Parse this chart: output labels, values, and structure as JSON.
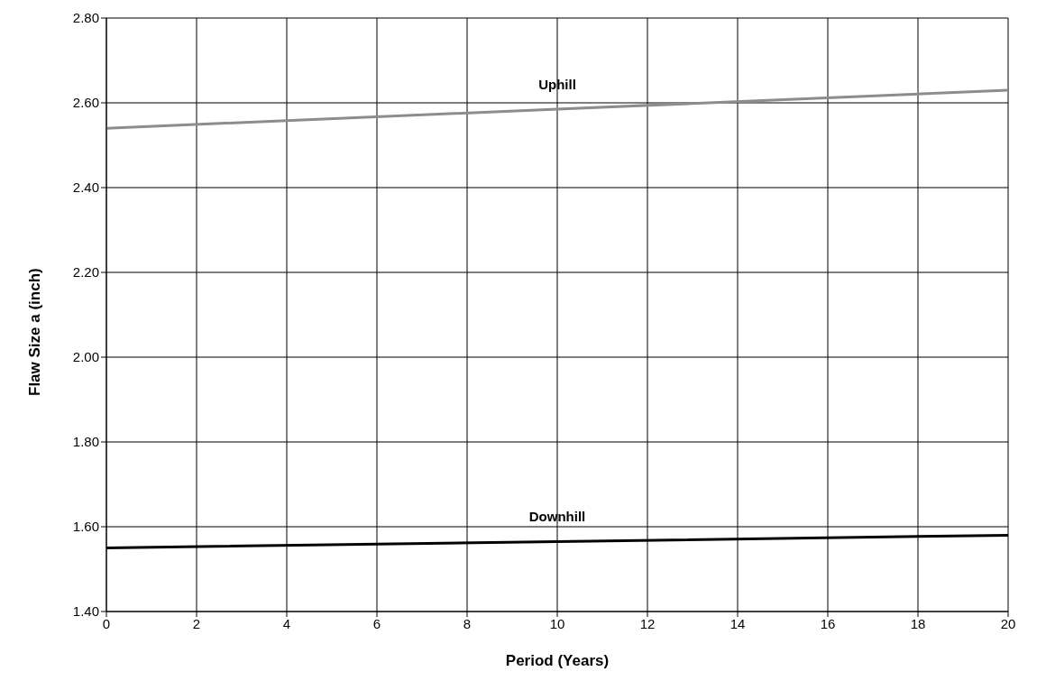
{
  "chart_data": {
    "type": "line",
    "xlabel": "Period (Years)",
    "ylabel": "Flaw  Size a (inch)",
    "xlim": [
      0,
      20
    ],
    "xticks": [
      0,
      2,
      4,
      6,
      8,
      10,
      12,
      14,
      16,
      18,
      20
    ],
    "ylim": [
      1.4,
      2.8
    ],
    "yticks": [
      {
        "value": 1.4,
        "label": "1.40"
      },
      {
        "value": 1.6,
        "label": "1.60"
      },
      {
        "value": 1.8,
        "label": "1.80"
      },
      {
        "value": 2.0,
        "label": "2.00"
      },
      {
        "value": 2.2,
        "label": "2.20"
      },
      {
        "value": 2.4,
        "label": "2.40"
      },
      {
        "value": 2.6,
        "label": "2.60"
      },
      {
        "value": 2.8,
        "label": "2.80"
      }
    ],
    "grid": true,
    "marker": "none",
    "line_style": "solid",
    "legend": false,
    "series": [
      {
        "name": "Uphill",
        "color": "#8c8c8c",
        "x": [
          0,
          10,
          20
        ],
        "values": [
          2.54,
          2.585,
          2.63
        ]
      },
      {
        "name": "Downhill",
        "color": "#000000",
        "x": [
          0,
          10,
          20
        ],
        "values": [
          1.55,
          1.565,
          1.58
        ]
      }
    ]
  }
}
